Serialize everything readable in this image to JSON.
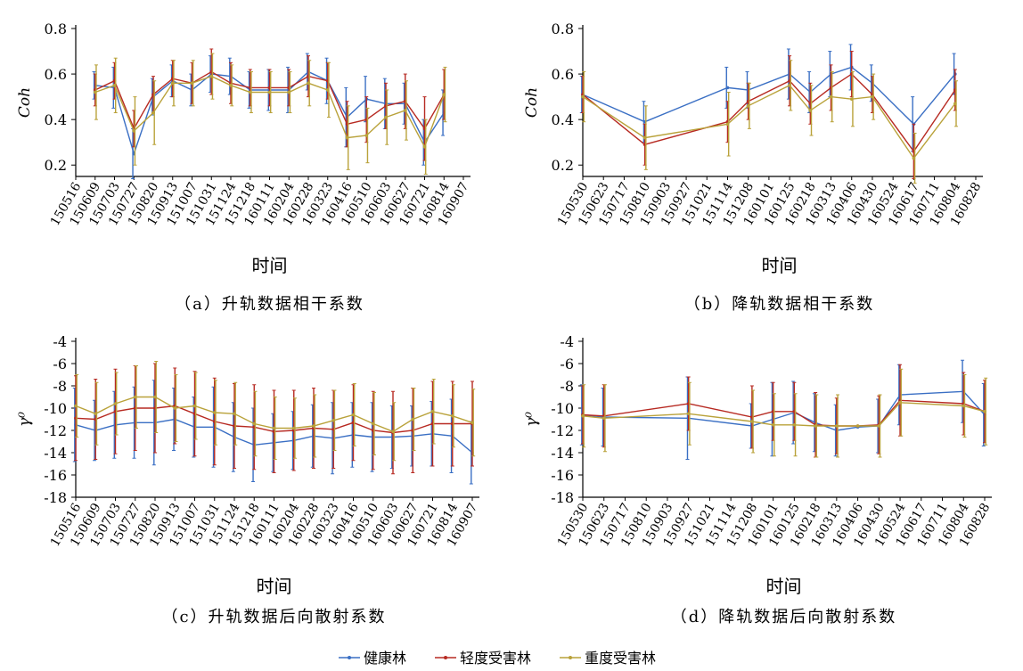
{
  "legend": [
    {
      "label": "健康林",
      "color": "#3a6fc4"
    },
    {
      "label": "轻度受害林",
      "color": "#b72a22"
    },
    {
      "label": "重度受害林",
      "color": "#b9a23a"
    }
  ],
  "chart_data": [
    {
      "type": "line",
      "caption": "（a）升轨数据相干系数",
      "xlabel": "时间",
      "ylabel": "Coh",
      "ylim": [
        0.15,
        0.8
      ],
      "yticks": [
        0.2,
        0.4,
        0.6,
        0.8
      ],
      "yticklabels": [
        "0.2",
        "0.4",
        "0.6",
        "0.8"
      ],
      "categories": [
        "150516",
        "150609",
        "150703",
        "150727",
        "150820",
        "150913",
        "151007",
        "151031",
        "151124",
        "151218",
        "160111",
        "160204",
        "160228",
        "160323",
        "160416",
        "160510",
        "160603",
        "160627",
        "160721",
        "160814",
        "160907"
      ],
      "series": [
        {
          "name": "健康林",
          "values": [
            null,
            0.55,
            0.54,
            0.25,
            0.5,
            0.57,
            0.53,
            0.6,
            0.59,
            0.53,
            0.53,
            0.53,
            0.61,
            0.57,
            0.41,
            0.49,
            0.47,
            0.47,
            0.3,
            0.43,
            null
          ],
          "err": [
            null,
            0.06,
            0.09,
            0.11,
            0.08,
            0.07,
            0.07,
            0.08,
            0.08,
            0.08,
            0.09,
            0.1,
            0.08,
            0.1,
            0.13,
            0.1,
            0.11,
            0.09,
            0.1,
            0.1,
            null
          ]
        },
        {
          "name": "轻度受害林",
          "values": [
            null,
            0.53,
            0.57,
            0.36,
            0.51,
            0.58,
            0.56,
            0.61,
            0.56,
            0.54,
            0.54,
            0.54,
            0.59,
            0.57,
            0.38,
            0.4,
            0.46,
            0.48,
            0.36,
            0.51,
            null
          ],
          "err": [
            null,
            0.07,
            0.08,
            0.08,
            0.08,
            0.08,
            0.09,
            0.1,
            0.09,
            0.08,
            0.08,
            0.08,
            0.09,
            0.08,
            0.1,
            0.1,
            0.1,
            0.12,
            0.14,
            0.11,
            null
          ]
        },
        {
          "name": "重度受害林",
          "values": [
            null,
            0.52,
            0.55,
            0.35,
            0.43,
            0.56,
            0.56,
            0.59,
            0.55,
            0.52,
            0.52,
            0.52,
            0.56,
            0.53,
            0.32,
            0.33,
            0.41,
            0.44,
            0.28,
            0.51,
            null
          ],
          "err": [
            null,
            0.12,
            0.12,
            0.15,
            0.14,
            0.1,
            0.1,
            0.1,
            0.09,
            0.09,
            0.09,
            0.09,
            0.1,
            0.12,
            0.14,
            0.12,
            0.12,
            0.13,
            0.12,
            0.12,
            null
          ]
        }
      ]
    },
    {
      "type": "line",
      "caption": "（b）降轨数据相干系数",
      "xlabel": "时间",
      "ylabel": "Coh",
      "ylim": [
        0.15,
        0.8
      ],
      "yticks": [
        0.2,
        0.4,
        0.6,
        0.8
      ],
      "yticklabels": [
        "0.2",
        "0.4",
        "0.6",
        "0.8"
      ],
      "categories": [
        "150530",
        "150623",
        "150717",
        "150810",
        "150903",
        "150927",
        "151021",
        "151114",
        "151208",
        "160101",
        "160125",
        "160218",
        "160313",
        "160406",
        "160430",
        "160524",
        "160617",
        "160711",
        "160804",
        "160828"
      ],
      "series": [
        {
          "name": "健康林",
          "values": [
            0.51,
            null,
            null,
            0.39,
            null,
            null,
            null,
            0.54,
            0.53,
            null,
            0.6,
            0.52,
            0.6,
            0.63,
            0.56,
            null,
            0.38,
            null,
            0.6,
            null
          ],
          "err": [
            0.08,
            null,
            null,
            0.09,
            null,
            null,
            null,
            0.09,
            0.08,
            null,
            0.11,
            0.09,
            0.1,
            0.1,
            0.08,
            null,
            0.12,
            null,
            0.09,
            null
          ]
        },
        {
          "name": "轻度受害林",
          "values": [
            0.51,
            null,
            null,
            0.29,
            null,
            null,
            null,
            0.39,
            0.48,
            null,
            0.57,
            0.47,
            0.54,
            0.6,
            0.51,
            null,
            0.26,
            null,
            0.53,
            null
          ],
          "err": [
            0.08,
            null,
            null,
            0.09,
            null,
            null,
            null,
            0.09,
            0.08,
            null,
            0.11,
            0.09,
            0.1,
            0.1,
            0.08,
            null,
            0.12,
            null,
            0.09,
            null
          ]
        },
        {
          "name": "重度受害林",
          "values": [
            0.5,
            null,
            null,
            0.32,
            null,
            null,
            null,
            0.38,
            0.46,
            null,
            0.55,
            0.44,
            0.5,
            0.49,
            0.5,
            null,
            0.23,
            null,
            0.47,
            null
          ],
          "err": [
            0.11,
            null,
            null,
            0.14,
            null,
            null,
            null,
            0.14,
            0.1,
            null,
            0.11,
            0.11,
            0.11,
            0.12,
            0.1,
            null,
            0.11,
            null,
            0.1,
            null
          ]
        }
      ]
    },
    {
      "type": "line",
      "caption": "（c）升轨数据后向散射系数",
      "xlabel": "时间",
      "ylabel": "γ⁰",
      "ylim": [
        -18,
        -4
      ],
      "yticks": [
        -18,
        -16,
        -14,
        -12,
        -10,
        -8,
        -6,
        -4
      ],
      "yticklabels": [
        "-18",
        "-16",
        "-14",
        "-12",
        "-10",
        "-8",
        "-6",
        "-4"
      ],
      "categories": [
        "150516",
        "150609",
        "150703",
        "150727",
        "150820",
        "150913",
        "151007",
        "151031",
        "151124",
        "151218",
        "160111",
        "160204",
        "160228",
        "160323",
        "160416",
        "160510",
        "160603",
        "160627",
        "160721",
        "160814",
        "160907"
      ],
      "series": [
        {
          "name": "健康林",
          "values": [
            -11.5,
            -12.0,
            -11.5,
            -11.3,
            -11.3,
            -11.0,
            -11.7,
            -11.7,
            -12.6,
            -13.3,
            -13.1,
            -12.9,
            -12.5,
            -12.7,
            -12.4,
            -12.6,
            -12.6,
            -12.5,
            -12.3,
            -12.5,
            -14.0
          ],
          "err": [
            3.3,
            2.7,
            3.0,
            3.2,
            3.8,
            2.8,
            2.7,
            3.6,
            3.1,
            3.3,
            2.6,
            2.6,
            2.8,
            3.2,
            2.9,
            3.1,
            2.8,
            2.7,
            2.9,
            3.3,
            2.8
          ]
        },
        {
          "name": "轻度受害林",
          "values": [
            -10.9,
            -11.0,
            -10.3,
            -10.0,
            -10.0,
            -9.8,
            -10.5,
            -11.2,
            -11.6,
            -11.7,
            -12.1,
            -12.0,
            -11.8,
            -11.9,
            -11.3,
            -12.0,
            -12.2,
            -12.0,
            -11.4,
            -11.4,
            -11.4
          ],
          "err": [
            3.8,
            3.6,
            3.8,
            3.8,
            4.0,
            3.4,
            3.8,
            3.9,
            3.8,
            3.8,
            3.7,
            3.6,
            3.6,
            3.5,
            3.4,
            3.5,
            3.7,
            3.8,
            3.8,
            3.8,
            3.8
          ]
        },
        {
          "name": "重度受害林",
          "values": [
            -9.8,
            -10.5,
            -9.6,
            -9.0,
            -9.0,
            -10.0,
            -9.8,
            -10.4,
            -10.5,
            -11.4,
            -11.8,
            -11.8,
            -11.6,
            -11.1,
            -10.6,
            -11.4,
            -12.1,
            -11.0,
            -10.3,
            -10.7,
            -11.3
          ],
          "err": [
            2.8,
            2.8,
            2.8,
            2.8,
            3.2,
            3.0,
            3.0,
            2.9,
            2.8,
            2.9,
            2.8,
            2.7,
            2.8,
            2.7,
            2.8,
            2.8,
            2.6,
            2.8,
            2.9,
            2.8,
            3.0
          ]
        }
      ]
    },
    {
      "type": "line",
      "caption": "（d）降轨数据后向散射系数",
      "xlabel": "时间",
      "ylabel": "γ⁰",
      "ylim": [
        -18,
        -4
      ],
      "yticks": [
        -18,
        -16,
        -14,
        -12,
        -10,
        -8,
        -6,
        -4
      ],
      "yticklabels": [
        "-18",
        "-16",
        "-14",
        "-12",
        "-10",
        "-8",
        "-6",
        "-4"
      ],
      "categories": [
        "150530",
        "150623",
        "150717",
        "150810",
        "150903",
        "150927",
        "151021",
        "151114",
        "151208",
        "160101",
        "160125",
        "160218",
        "160313",
        "160406",
        "160430",
        "160524",
        "160617",
        "160711",
        "160804",
        "160828"
      ],
      "series": [
        {
          "name": "健康林",
          "values": [
            -10.6,
            -10.8,
            null,
            null,
            null,
            -10.9,
            null,
            null,
            -11.6,
            -11.0,
            -10.4,
            -11.3,
            -12.0,
            -11.7,
            -11.6,
            -8.8,
            null,
            null,
            -8.5,
            -10.6
          ],
          "err": [
            2.7,
            2.6,
            null,
            null,
            null,
            3.7,
            null,
            null,
            2.0,
            3.3,
            2.8,
            2.6,
            2.3,
            null,
            2.4,
            2.7,
            null,
            null,
            2.8,
            2.8
          ]
        },
        {
          "name": "轻度受害林",
          "values": [
            -10.6,
            -10.7,
            null,
            null,
            null,
            -9.6,
            null,
            null,
            -10.8,
            -10.3,
            -10.3,
            -11.5,
            -11.6,
            -11.6,
            -11.5,
            -9.3,
            null,
            null,
            -9.6,
            -10.3
          ],
          "err": [
            2.6,
            2.8,
            null,
            null,
            null,
            2.4,
            null,
            null,
            2.8,
            2.6,
            2.6,
            2.9,
            2.5,
            null,
            2.6,
            3.2,
            null,
            null,
            2.8,
            2.8
          ]
        },
        {
          "name": "重度受害林",
          "values": [
            -10.7,
            -10.9,
            null,
            null,
            null,
            -10.5,
            null,
            null,
            -11.2,
            -11.5,
            -11.5,
            -11.6,
            -11.6,
            -11.6,
            -11.6,
            -9.5,
            null,
            null,
            -9.8,
            -10.3
          ],
          "err": [
            2.8,
            3.0,
            null,
            null,
            null,
            2.8,
            null,
            null,
            2.8,
            2.8,
            2.8,
            2.8,
            2.8,
            null,
            2.8,
            3.0,
            null,
            null,
            2.8,
            3.0
          ]
        }
      ]
    }
  ]
}
